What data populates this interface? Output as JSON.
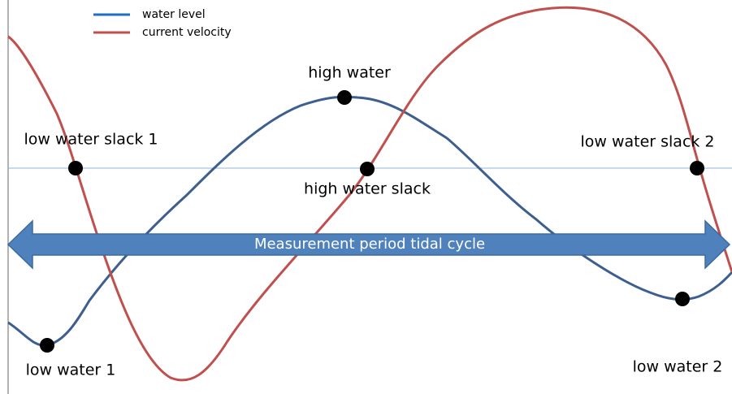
{
  "legend": {
    "items": [
      {
        "label": "water level"
      },
      {
        "label": "current velocity"
      }
    ]
  },
  "annotations": {
    "high_water": "high water",
    "low_water_slack_1": "low water slack 1",
    "high_water_slack": "high water slack",
    "low_water_slack_2": "low water slack 2",
    "low_water_1": "low water 1",
    "low_water_2": "low water 2"
  },
  "arrow": {
    "label": "Measurement period tidal cycle"
  }
}
